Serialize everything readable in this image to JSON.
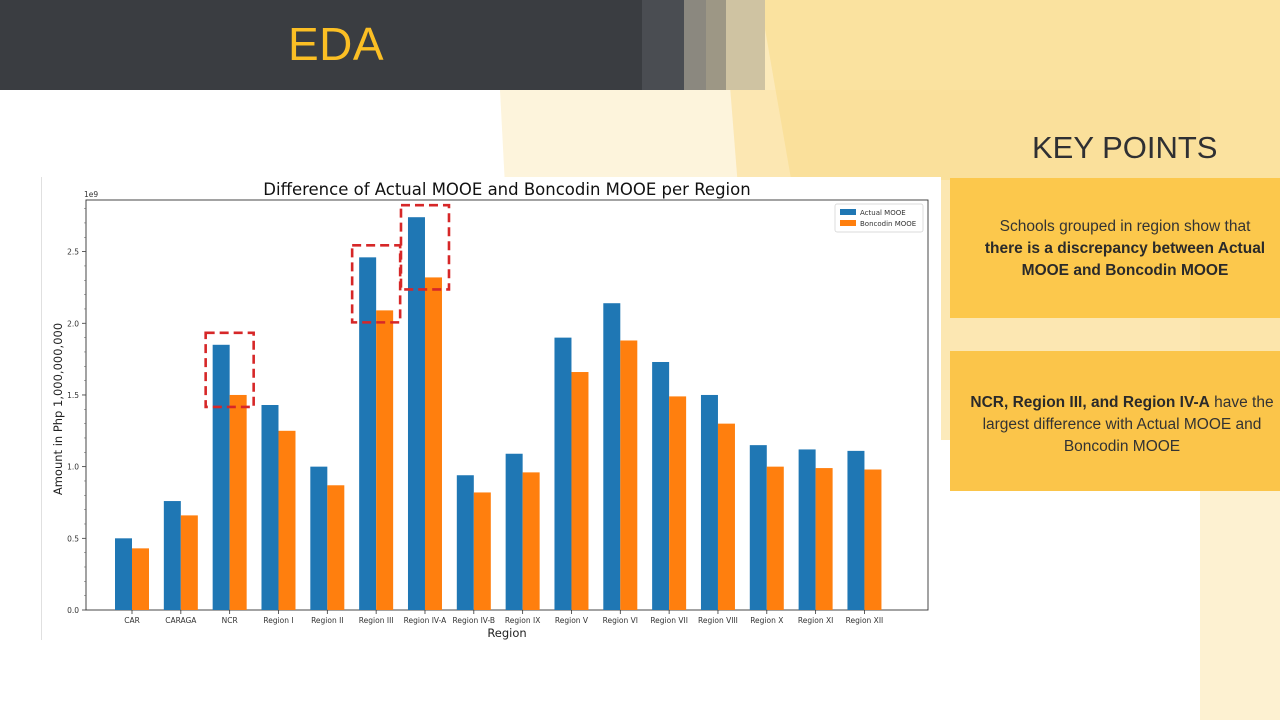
{
  "header": {
    "title": "EDA"
  },
  "key_points": {
    "heading": "KEY POINTS",
    "point1": {
      "text": "Schools grouped in region show that",
      "bold": "there is a discrepancy between Actual MOOE and Boncodin MOOE"
    },
    "point2": {
      "bold": "NCR, Region III, and Region IV-A",
      "text": "have the largest difference with Actual MOOE and Boncodin MOOE"
    }
  },
  "colors": {
    "actual": "#1f77b4",
    "boncodin": "#ff7f0e",
    "highlight": "#d62728",
    "accent": "#fbbf24"
  },
  "chart_data": {
    "type": "bar",
    "title": "Difference of Actual MOOE and Boncodin MOOE per Region",
    "xlabel": "Region",
    "ylabel": "Amount in Php 1,000,000,000",
    "offset_text": "1e9",
    "ylim": [
      0,
      2.86
    ],
    "yticks": [
      "0.0",
      "0.5",
      "1.0",
      "1.5",
      "2.0",
      "2.5"
    ],
    "legend_position": "top-right",
    "categories": [
      "CAR",
      "CARAGA",
      "NCR",
      "Region I",
      "Region II",
      "Region III",
      "Region IV-A",
      "Region IV-B",
      "Region IX",
      "Region V",
      "Region VI",
      "Region VII",
      "Region VIII",
      "Region X",
      "Region XI",
      "Region XII"
    ],
    "series": [
      {
        "name": "Actual MOOE",
        "values": [
          0.5,
          0.76,
          1.85,
          1.43,
          1.0,
          2.46,
          2.74,
          0.94,
          1.09,
          1.9,
          2.14,
          1.73,
          1.5,
          1.15,
          1.12,
          1.11
        ]
      },
      {
        "name": "Boncodin MOOE",
        "values": [
          0.43,
          0.66,
          1.5,
          1.25,
          0.87,
          2.09,
          2.32,
          0.82,
          0.96,
          1.66,
          1.88,
          1.49,
          1.3,
          1.0,
          0.99,
          0.98
        ]
      }
    ],
    "highlighted_categories": [
      "NCR",
      "Region III",
      "Region IV-A"
    ]
  }
}
